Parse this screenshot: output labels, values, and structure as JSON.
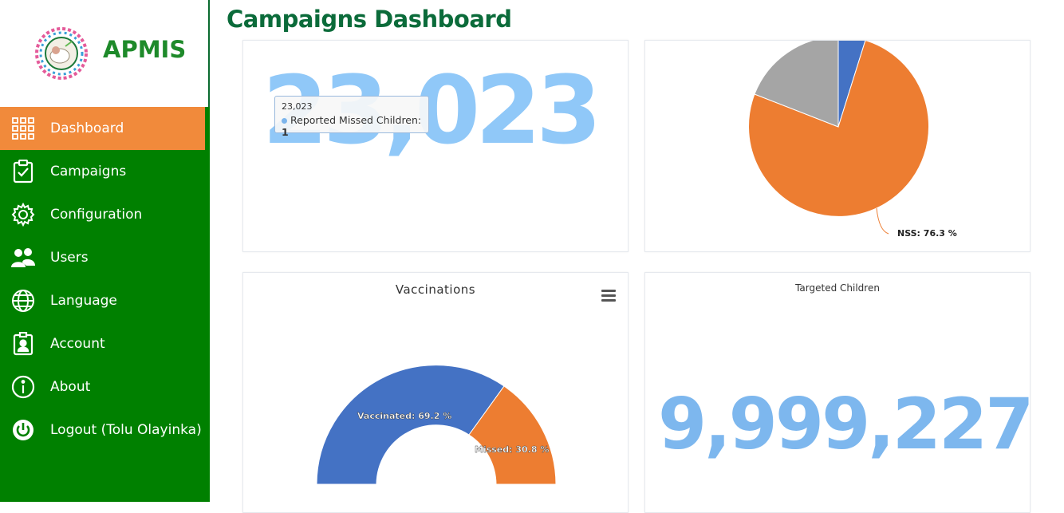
{
  "app": {
    "name": "APMIS"
  },
  "page": {
    "title": "Campaigns Dashboard"
  },
  "sidebar": {
    "items": [
      {
        "label": "Dashboard",
        "icon": "grid-icon",
        "active": true
      },
      {
        "label": "Campaigns",
        "icon": "clipboard-check-icon"
      },
      {
        "label": "Configuration",
        "icon": "gear-icon"
      },
      {
        "label": "Users",
        "icon": "users-icon"
      },
      {
        "label": "Language",
        "icon": "globe-icon"
      },
      {
        "label": "Account",
        "icon": "id-badge-icon"
      },
      {
        "label": "About",
        "icon": "info-icon"
      },
      {
        "label": "Logout (Tolu Olayinka)",
        "icon": "power-icon"
      }
    ]
  },
  "cards": {
    "missed": {
      "value": "23,023",
      "tooltip": {
        "header": "23,023",
        "series": "Reported Missed Children:",
        "value": "1"
      }
    },
    "pie_top": {
      "label": "NSS: 76.3 %"
    },
    "vaccinations": {
      "title": "Vaccinations",
      "vaccinated_label": "Vaccinated: 69.2 %",
      "missed_label": "Missed: 30.8 %"
    },
    "targeted": {
      "title": "Targeted Children",
      "value": "9,999,227"
    }
  },
  "colors": {
    "sidebar": "#008000",
    "active": "#f18a3b",
    "title": "#0b6b3a",
    "bignum": "#90c8f8",
    "blue": "#4472c4",
    "orange": "#ed7d31",
    "gray": "#a5a5a5"
  },
  "chart_data": [
    {
      "type": "pie",
      "categories": [
        "Blue segment",
        "NSS",
        "Gray segment"
      ],
      "values": [
        3.2,
        76.3,
        20.5
      ],
      "labels_shown": [
        "NSS: 76.3 %"
      ]
    },
    {
      "type": "pie",
      "variant": "semi-circle donut",
      "title": "Vaccinations",
      "categories": [
        "Vaccinated",
        "Missed"
      ],
      "values": [
        69.2,
        30.8
      ]
    }
  ]
}
